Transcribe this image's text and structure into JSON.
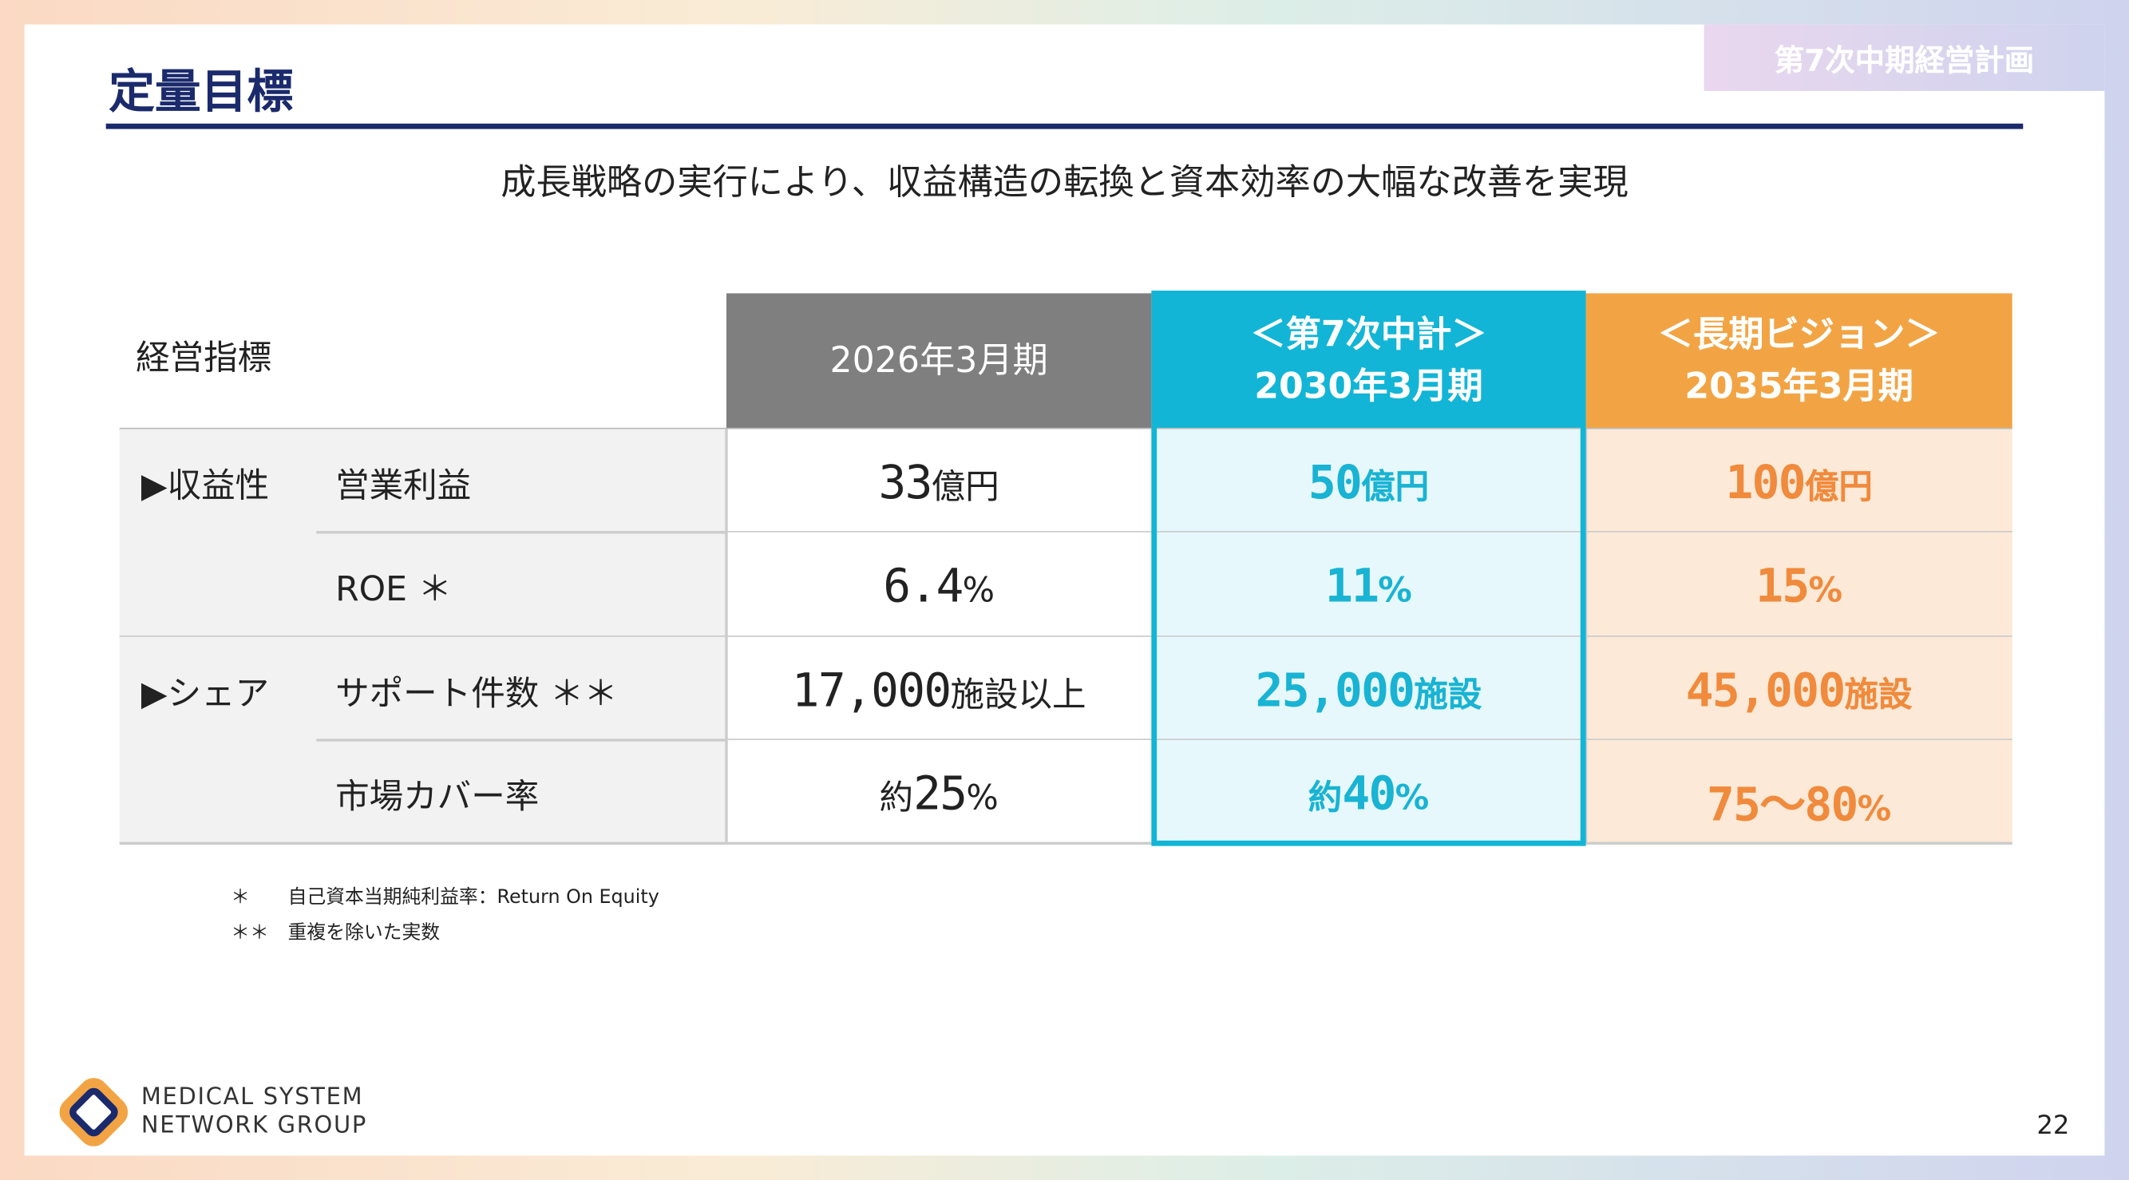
{
  "header": {
    "title": "定量目標",
    "tag": "第7次中期経営計画"
  },
  "subtitle": "成長戦略の実行により、収益構造の転換と資本効率の大幅な改善を実現",
  "table": {
    "label": "経営指標",
    "columns": [
      {
        "lines": [
          "2026年3月期"
        ]
      },
      {
        "lines": [
          "＜第7次中計＞",
          "2030年3月期"
        ]
      },
      {
        "lines": [
          "＜長期ビジョン＞",
          "2035年3月期"
        ]
      }
    ],
    "groups": [
      {
        "name": "▶収益性",
        "rows": [
          {
            "metric": "営業利益",
            "cells": [
              [
                "33",
                "億円"
              ],
              [
                "50",
                "億円"
              ],
              [
                "100",
                "億円"
              ]
            ]
          },
          {
            "metric": "ROE ＊",
            "cells": [
              [
                "6.4",
                "%"
              ],
              [
                "11",
                "%"
              ],
              [
                "15",
                "%"
              ]
            ]
          }
        ]
      },
      {
        "name": "▶シェア",
        "rows": [
          {
            "metric": "サポート件数 ＊＊",
            "cells": [
              [
                "17,000",
                "施設以上"
              ],
              [
                "25,000",
                "施設"
              ],
              [
                "45,000",
                "施設"
              ]
            ]
          },
          {
            "metric": "市場カバー率",
            "cells": [
              [
                "約",
                "25",
                "%"
              ],
              [
                "約",
                "40",
                "%"
              ],
              [
                "75～80",
                "%"
              ]
            ]
          }
        ]
      }
    ]
  },
  "footnotes": [
    {
      "mark": "＊",
      "text": "自己資本当期純利益率：Return On Equity"
    },
    {
      "mark": "＊＊",
      "text": "重複を除いた実数"
    }
  ],
  "logo": [
    "MEDICAL SYSTEM",
    "NETWORK GROUP"
  ],
  "page": "22"
}
